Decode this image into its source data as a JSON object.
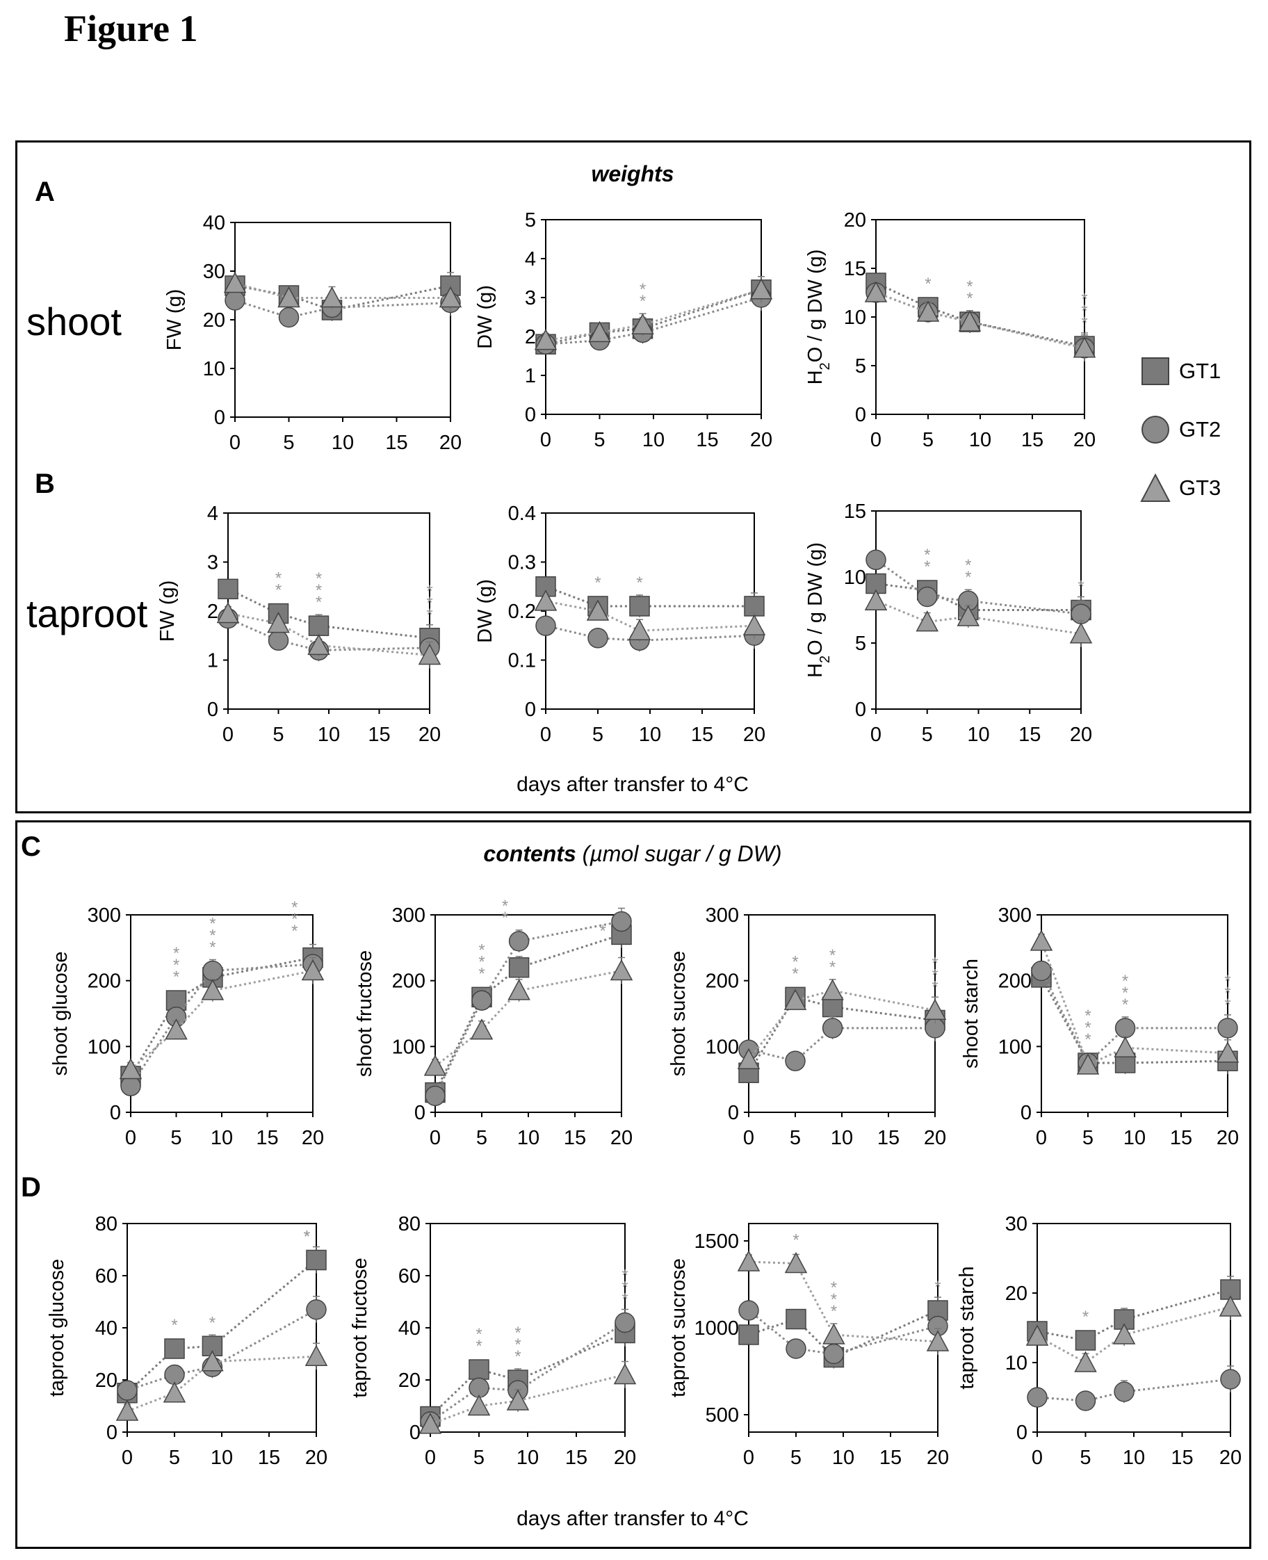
{
  "figure_title": "Figure 1",
  "panels": {
    "top": {
      "section_title_bold": "weights",
      "section_title_rest": "",
      "letters": [
        "A",
        "B"
      ],
      "xlabel": "days after transfer to 4°C"
    },
    "bottom": {
      "section_title_bold": "contents",
      "section_title_rest": " (µmol sugar / g DW)",
      "letters": [
        "C",
        "D"
      ],
      "xlabel": "days after transfer to 4°C"
    }
  },
  "row_labels": {
    "shoot": "shoot",
    "taproot": "taproot"
  },
  "legend": [
    {
      "name": "GT1",
      "marker": "square",
      "color": "#7a7a7a"
    },
    {
      "name": "GT2",
      "marker": "circle",
      "color": "#8a8a8a"
    },
    {
      "name": "GT3",
      "marker": "triangle",
      "color": "#9e9e9e"
    }
  ],
  "colors": {
    "GT1": "#7a7a7a",
    "GT2": "#8a8a8a",
    "GT3": "#9e9e9e",
    "star": "#9a9a9a",
    "frame": "#000000"
  },
  "chart_data": [
    {
      "id": "A-FW",
      "type": "line",
      "ylabel": "FW (g)",
      "ylim": [
        0,
        40
      ],
      "yticks": [
        0,
        10,
        20,
        30,
        40
      ],
      "xlim": [
        0,
        20
      ],
      "xticks": [
        0,
        5,
        10,
        15,
        20
      ],
      "series": [
        {
          "name": "GT1",
          "x": [
            0,
            5,
            9,
            20
          ],
          "values": [
            27,
            25,
            22,
            27
          ]
        },
        {
          "name": "GT2",
          "x": [
            0,
            5,
            9,
            20
          ],
          "values": [
            24,
            20.5,
            22.5,
            23.5
          ]
        },
        {
          "name": "GT3",
          "x": [
            0,
            5,
            9,
            20
          ],
          "values": [
            27.5,
            24.5,
            24.5,
            24.5
          ]
        }
      ],
      "stars": []
    },
    {
      "id": "A-DW",
      "type": "line",
      "ylabel": "DW (g)",
      "ylim": [
        0,
        5
      ],
      "yticks": [
        0,
        1,
        2,
        3,
        4,
        5
      ],
      "xlim": [
        0,
        20
      ],
      "xticks": [
        0,
        5,
        10,
        15,
        20
      ],
      "series": [
        {
          "name": "GT1",
          "x": [
            0,
            5,
            9,
            20
          ],
          "values": [
            1.8,
            2.1,
            2.2,
            3.2
          ]
        },
        {
          "name": "GT2",
          "x": [
            0,
            5,
            9,
            20
          ],
          "values": [
            1.8,
            1.9,
            2.1,
            3.0
          ]
        },
        {
          "name": "GT3",
          "x": [
            0,
            5,
            9,
            20
          ],
          "values": [
            1.9,
            2.1,
            2.3,
            3.2
          ]
        }
      ],
      "stars": [
        {
          "x": 9,
          "text": "**"
        }
      ]
    },
    {
      "id": "A-H2O",
      "type": "line",
      "ylabel": "H2O / g DW (g)",
      "ylim": [
        0,
        20
      ],
      "yticks": [
        0,
        5,
        10,
        15,
        20
      ],
      "xlim": [
        0,
        20
      ],
      "xticks": [
        0,
        5,
        10,
        15,
        20
      ],
      "series": [
        {
          "name": "GT1",
          "x": [
            0,
            5,
            9,
            20
          ],
          "values": [
            13.5,
            11,
            9.5,
            7
          ]
        },
        {
          "name": "GT2",
          "x": [
            0,
            5,
            9,
            20
          ],
          "values": [
            12.5,
            10.5,
            9.5,
            6.8
          ]
        },
        {
          "name": "GT3",
          "x": [
            0,
            5,
            9,
            20
          ],
          "values": [
            12.5,
            10.5,
            9.5,
            6.8
          ]
        }
      ],
      "stars": [
        {
          "x": 5,
          "text": "*"
        },
        {
          "x": 9,
          "text": "**"
        },
        {
          "x": 20,
          "text": "***"
        }
      ]
    },
    {
      "id": "B-FW",
      "type": "line",
      "ylabel": "FW (g)",
      "ylim": [
        0,
        4
      ],
      "yticks": [
        0,
        1,
        2,
        3,
        4
      ],
      "xlim": [
        0,
        20
      ],
      "xticks": [
        0,
        5,
        10,
        15,
        20
      ],
      "series": [
        {
          "name": "GT1",
          "x": [
            0,
            5,
            9,
            20
          ],
          "values": [
            2.45,
            1.95,
            1.7,
            1.45
          ]
        },
        {
          "name": "GT2",
          "x": [
            0,
            5,
            9,
            20
          ],
          "values": [
            1.85,
            1.4,
            1.2,
            1.25
          ]
        },
        {
          "name": "GT3",
          "x": [
            0,
            5,
            9,
            20
          ],
          "values": [
            1.95,
            1.75,
            1.3,
            1.1
          ]
        }
      ],
      "stars": [
        {
          "x": 5,
          "text": "**"
        },
        {
          "x": 9,
          "text": "***"
        },
        {
          "x": 20,
          "text": "***"
        }
      ]
    },
    {
      "id": "B-DW",
      "type": "line",
      "ylabel": "DW (g)",
      "ylim": [
        0,
        0.4
      ],
      "yticks": [
        0,
        0.1,
        0.2,
        0.3,
        0.4
      ],
      "xlim": [
        0,
        20
      ],
      "xticks": [
        0,
        5,
        10,
        15,
        20
      ],
      "series": [
        {
          "name": "GT1",
          "x": [
            0,
            5,
            9,
            20
          ],
          "values": [
            0.25,
            0.21,
            0.21,
            0.21
          ]
        },
        {
          "name": "GT2",
          "x": [
            0,
            5,
            9,
            20
          ],
          "values": [
            0.17,
            0.145,
            0.14,
            0.15
          ]
        },
        {
          "name": "GT3",
          "x": [
            0,
            5,
            9,
            20
          ],
          "values": [
            0.22,
            0.2,
            0.16,
            0.17
          ]
        }
      ],
      "stars": [
        {
          "x": 5,
          "text": "*"
        },
        {
          "x": 9,
          "text": "*"
        }
      ]
    },
    {
      "id": "B-H2O",
      "type": "line",
      "ylabel": "H2O / g DW (g)",
      "ylim": [
        0,
        15
      ],
      "yticks": [
        0,
        5,
        10,
        15
      ],
      "xlim": [
        0,
        20
      ],
      "xticks": [
        0,
        5,
        10,
        15,
        20
      ],
      "series": [
        {
          "name": "GT1",
          "x": [
            0,
            5,
            9,
            20
          ],
          "values": [
            9.5,
            9,
            7.5,
            7.5
          ]
        },
        {
          "name": "GT2",
          "x": [
            0,
            5,
            9,
            20
          ],
          "values": [
            11.3,
            8.5,
            8.2,
            7.2
          ]
        },
        {
          "name": "GT3",
          "x": [
            0,
            5,
            9,
            20
          ],
          "values": [
            8.2,
            6.6,
            7,
            5.7
          ]
        }
      ],
      "stars": [
        {
          "x": 5,
          "text": "**"
        },
        {
          "x": 9,
          "text": "**"
        },
        {
          "x": 20,
          "text": "*"
        }
      ]
    },
    {
      "id": "C-glucose",
      "type": "line",
      "ylabel": "shoot glucose",
      "ylim": [
        0,
        300
      ],
      "yticks": [
        0,
        100,
        200,
        300
      ],
      "xlim": [
        0,
        20
      ],
      "xticks": [
        0,
        5,
        10,
        15,
        20
      ],
      "series": [
        {
          "name": "GT1",
          "x": [
            0,
            5,
            9,
            20
          ],
          "values": [
            55,
            170,
            205,
            235
          ]
        },
        {
          "name": "GT2",
          "x": [
            0,
            5,
            9,
            20
          ],
          "values": [
            40,
            145,
            215,
            225
          ]
        },
        {
          "name": "GT3",
          "x": [
            0,
            5,
            9,
            20
          ],
          "values": [
            65,
            125,
            185,
            215
          ]
        }
      ],
      "stars": [
        {
          "x": 5,
          "text": "***"
        },
        {
          "x": 9,
          "text": "***"
        },
        {
          "x": 18,
          "text": "***"
        }
      ]
    },
    {
      "id": "C-fructose",
      "type": "line",
      "ylabel": "shoot fructose",
      "ylim": [
        0,
        300
      ],
      "yticks": [
        0,
        100,
        200,
        300
      ],
      "xlim": [
        0,
        20
      ],
      "xticks": [
        0,
        5,
        10,
        15,
        20
      ],
      "series": [
        {
          "name": "GT1",
          "x": [
            0,
            5,
            9,
            20
          ],
          "values": [
            30,
            175,
            220,
            270
          ]
        },
        {
          "name": "GT2",
          "x": [
            0,
            5,
            9,
            20
          ],
          "values": [
            25,
            170,
            260,
            290
          ]
        },
        {
          "name": "GT3",
          "x": [
            0,
            5,
            9,
            20
          ],
          "values": [
            70,
            125,
            185,
            215
          ]
        }
      ],
      "stars": [
        {
          "x": 5,
          "text": "***"
        },
        {
          "x": 7.5,
          "text": "**"
        },
        {
          "x": 18,
          "text": "*"
        }
      ]
    },
    {
      "id": "C-sucrose",
      "type": "line",
      "ylabel": "shoot sucrose",
      "ylim": [
        0,
        300
      ],
      "yticks": [
        0,
        100,
        200,
        300
      ],
      "xlim": [
        0,
        20
      ],
      "xticks": [
        0,
        5,
        10,
        15,
        20
      ],
      "series": [
        {
          "name": "GT1",
          "x": [
            0,
            5,
            9,
            20
          ],
          "values": [
            60,
            175,
            160,
            140
          ]
        },
        {
          "name": "GT2",
          "x": [
            0,
            5,
            9,
            20
          ],
          "values": [
            95,
            78,
            128,
            128
          ]
        },
        {
          "name": "GT3",
          "x": [
            0,
            5,
            9,
            20
          ],
          "values": [
            80,
            170,
            185,
            155
          ]
        }
      ],
      "stars": [
        {
          "x": 5,
          "text": "**"
        },
        {
          "x": 9,
          "text": "**"
        },
        {
          "x": 20,
          "text": "***"
        }
      ]
    },
    {
      "id": "C-starch",
      "type": "line",
      "ylabel": "shoot starch",
      "ylim": [
        0,
        300
      ],
      "yticks": [
        0,
        100,
        200,
        300
      ],
      "xlim": [
        0,
        20
      ],
      "xticks": [
        0,
        5,
        10,
        15,
        20
      ],
      "series": [
        {
          "name": "GT1",
          "x": [
            0,
            5,
            9,
            20
          ],
          "values": [
            205,
            75,
            75,
            78
          ]
        },
        {
          "name": "GT2",
          "x": [
            0,
            5,
            9,
            20
          ],
          "values": [
            215,
            75,
            128,
            128
          ]
        },
        {
          "name": "GT3",
          "x": [
            0,
            5,
            9,
            20
          ],
          "values": [
            260,
            72,
            98,
            90
          ]
        }
      ],
      "stars": [
        {
          "x": 5,
          "text": "***"
        },
        {
          "x": 9,
          "text": "***"
        },
        {
          "x": 20,
          "text": "***"
        }
      ]
    },
    {
      "id": "D-glucose",
      "type": "line",
      "ylabel": "taproot glucose",
      "ylim": [
        0,
        80
      ],
      "yticks": [
        0,
        20,
        40,
        60,
        80
      ],
      "xlim": [
        0,
        20
      ],
      "xticks": [
        0,
        5,
        10,
        15,
        20
      ],
      "series": [
        {
          "name": "GT1",
          "x": [
            0,
            5,
            9,
            20
          ],
          "values": [
            15,
            32,
            33,
            66
          ]
        },
        {
          "name": "GT2",
          "x": [
            0,
            5,
            9,
            20
          ],
          "values": [
            16,
            22,
            25,
            47
          ]
        },
        {
          "name": "GT3",
          "x": [
            0,
            5,
            9,
            20
          ],
          "values": [
            8,
            15,
            27,
            29
          ]
        }
      ],
      "stars": [
        {
          "x": 5,
          "text": "*"
        },
        {
          "x": 9,
          "text": "*"
        },
        {
          "x": 19,
          "text": "*"
        },
        {
          "x": 19,
          "text": "*"
        },
        {
          "x": 19,
          "text": "*"
        }
      ]
    },
    {
      "id": "D-fructose",
      "type": "line",
      "ylabel": "taproot fructose",
      "ylim": [
        0,
        80
      ],
      "yticks": [
        0,
        20,
        40,
        60,
        80
      ],
      "xlim": [
        0,
        20
      ],
      "xticks": [
        0,
        5,
        10,
        15,
        20
      ],
      "series": [
        {
          "name": "GT1",
          "x": [
            0,
            5,
            9,
            20
          ],
          "values": [
            6,
            24,
            20,
            38
          ]
        },
        {
          "name": "GT2",
          "x": [
            0,
            5,
            9,
            20
          ],
          "values": [
            4,
            17,
            16,
            42
          ]
        },
        {
          "name": "GT3",
          "x": [
            0,
            5,
            9,
            20
          ],
          "values": [
            3,
            10,
            12,
            22
          ]
        }
      ],
      "stars": [
        {
          "x": 5,
          "text": "**"
        },
        {
          "x": 9,
          "text": "***"
        },
        {
          "x": 20,
          "text": "***"
        }
      ]
    },
    {
      "id": "D-sucrose",
      "type": "line",
      "ylabel": "taproot sucrose",
      "ylim": [
        400,
        1600
      ],
      "yticks": [
        500,
        1000,
        1500
      ],
      "xlim": [
        0,
        20
      ],
      "xticks": [
        0,
        5,
        10,
        15,
        20
      ],
      "series": [
        {
          "name": "GT1",
          "x": [
            0,
            5,
            9,
            20
          ],
          "values": [
            960,
            1050,
            830,
            1100
          ]
        },
        {
          "name": "GT2",
          "x": [
            0,
            5,
            9,
            20
          ],
          "values": [
            1100,
            880,
            850,
            1010
          ]
        },
        {
          "name": "GT3",
          "x": [
            0,
            5,
            9,
            20
          ],
          "values": [
            1380,
            1370,
            960,
            920
          ]
        }
      ],
      "stars": [
        {
          "x": 5,
          "text": "*"
        },
        {
          "x": 9,
          "text": "***"
        },
        {
          "x": 20,
          "text": "*"
        }
      ]
    },
    {
      "id": "D-starch",
      "type": "line",
      "ylabel": "taproot starch",
      "ylim": [
        0,
        30
      ],
      "yticks": [
        0,
        10,
        20,
        30
      ],
      "xlim": [
        0,
        20
      ],
      "xticks": [
        0,
        5,
        10,
        15,
        20
      ],
      "series": [
        {
          "name": "GT1",
          "x": [
            0,
            5,
            9,
            20
          ],
          "values": [
            14.5,
            13.2,
            16.2,
            20.5
          ]
        },
        {
          "name": "GT2",
          "x": [
            0,
            5,
            9,
            20
          ],
          "values": [
            5,
            4.5,
            5.8,
            7.6
          ]
        },
        {
          "name": "GT3",
          "x": [
            0,
            5,
            9,
            20
          ],
          "values": [
            13.8,
            10,
            14,
            18
          ]
        }
      ],
      "stars": [
        {
          "x": 5,
          "text": "*"
        }
      ]
    }
  ]
}
